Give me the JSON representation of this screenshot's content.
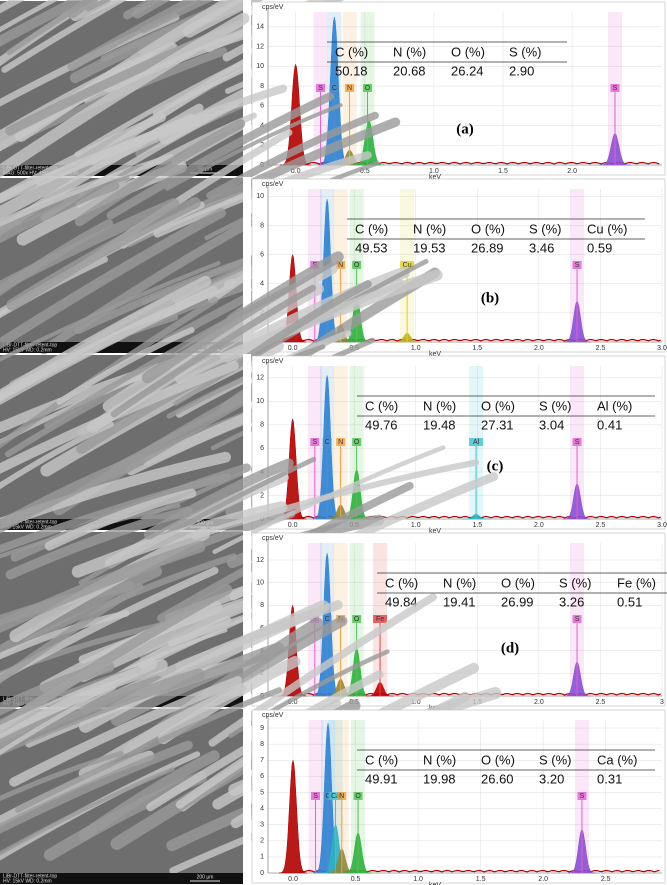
{
  "panels": [
    {
      "label": "(a)",
      "y_unit": "cps/eV",
      "x_unit": "keV",
      "sem": {
        "line1": "LiBr-DTT-filter-retent-top",
        "line2": "MAG: 500x  HV: 15kV  WD: 6.5mm",
        "scale": "50 µm"
      },
      "xlim": [
        -0.2,
        2.65
      ],
      "xticks": [
        {
          "value": 0,
          "label": "0.0"
        },
        {
          "value": 0.5,
          "label": "0.5"
        },
        {
          "value": 1,
          "label": "1.0"
        },
        {
          "value": 1.5,
          "label": "1.5"
        },
        {
          "value": 2,
          "label": "2.0"
        }
      ],
      "ylim": [
        0,
        15.5
      ],
      "yticks": [
        0,
        2,
        4,
        6,
        8,
        10,
        12,
        14
      ],
      "table": {
        "header": [
          "C (%)",
          "N (%)",
          "O (%)",
          "S (%)"
        ],
        "values": [
          "50.18",
          "20.68",
          "26.24",
          "2.90"
        ]
      },
      "markers": [
        {
          "label": "S",
          "x": 0.18,
          "color": "#e060d0"
        },
        {
          "label": "C",
          "x": 0.28,
          "color": "#4a90d0"
        },
        {
          "label": "N",
          "x": 0.39,
          "color": "#f0a040"
        },
        {
          "label": "O",
          "x": 0.52,
          "color": "#50c050"
        },
        {
          "label": "S",
          "x": 2.31,
          "color": "#e060d0"
        }
      ],
      "peaks": [
        {
          "x": 0.0,
          "y": 10.2,
          "color": "#b00000"
        },
        {
          "x": 0.28,
          "y": 15,
          "color": "#2f7fd0"
        },
        {
          "x": 0.39,
          "y": 1.5,
          "color": "#8a8a40"
        },
        {
          "x": 0.53,
          "y": 4.5,
          "color": "#30b040"
        },
        {
          "x": 2.31,
          "y": 3.2,
          "color": "#8a50d0"
        }
      ]
    },
    {
      "label": "(b)",
      "y_unit": "cps/eV",
      "x_unit": "keV",
      "sem": {
        "line1": "LiBr-DTT-filter-retent-top",
        "line2": "HV: 15kV  WD: 0.2mm",
        "scale": "200 µm"
      },
      "xlim": [
        -0.2,
        3.0
      ],
      "xticks": [
        {
          "value": 0,
          "label": "0.0"
        },
        {
          "value": 0.5,
          "label": "0.5"
        },
        {
          "value": 1,
          "label": "1.0"
        },
        {
          "value": 1.5,
          "label": "1.5"
        },
        {
          "value": 2,
          "label": "2.0"
        },
        {
          "value": 2.5,
          "label": "2.5"
        },
        {
          "value": 3,
          "label": "3.0"
        }
      ],
      "ylim": [
        0,
        10.5
      ],
      "yticks": [
        0,
        2,
        4,
        6,
        8,
        10
      ],
      "table": {
        "header": [
          "C (%)",
          "N (%)",
          "O (%)",
          "S (%)",
          "Cu (%)"
        ],
        "values": [
          "49.53",
          "19.53",
          "26.89",
          "3.46",
          "0.59"
        ]
      },
      "markers": [
        {
          "label": "S",
          "x": 0.18,
          "color": "#e060d0"
        },
        {
          "label": "C",
          "x": 0.28,
          "color": "#4a90d0"
        },
        {
          "label": "N",
          "x": 0.39,
          "color": "#f0a040"
        },
        {
          "label": "O",
          "x": 0.52,
          "color": "#50c050"
        },
        {
          "label": "Cu",
          "x": 0.93,
          "color": "#e0d020"
        },
        {
          "label": "S",
          "x": 2.31,
          "color": "#e060d0"
        }
      ],
      "peaks": [
        {
          "x": 0.0,
          "y": 6,
          "color": "#b00000"
        },
        {
          "x": 0.28,
          "y": 9.8,
          "color": "#2f7fd0"
        },
        {
          "x": 0.39,
          "y": 1.2,
          "color": "#8a8a40"
        },
        {
          "x": 0.52,
          "y": 3.2,
          "color": "#30b040"
        },
        {
          "x": 0.93,
          "y": 0.6,
          "color": "#c0b020"
        },
        {
          "x": 2.31,
          "y": 2.8,
          "color": "#8a50d0"
        }
      ]
    },
    {
      "label": "(c)",
      "y_unit": "cps/eV",
      "x_unit": "keV",
      "sem": {
        "line1": "LiBr-DTT-filter-retent-top",
        "line2": "HV: 15kV  WD: 0.2mm",
        "scale": "200 µm"
      },
      "xlim": [
        -0.2,
        3.0
      ],
      "xticks": [
        {
          "value": 0,
          "label": "0.0"
        },
        {
          "value": 0.5,
          "label": "0.5"
        },
        {
          "value": 1,
          "label": "1.0"
        },
        {
          "value": 1.5,
          "label": "1.5"
        },
        {
          "value": 2,
          "label": "2.0"
        },
        {
          "value": 2.5,
          "label": "2.5"
        },
        {
          "value": 3,
          "label": "3.0"
        }
      ],
      "ylim": [
        0,
        13
      ],
      "yticks": [
        0,
        2,
        4,
        6,
        8,
        10,
        12
      ],
      "table": {
        "header": [
          "C (%)",
          "N (%)",
          "O (%)",
          "S (%)",
          "Al (%)"
        ],
        "values": [
          "49.76",
          "19.48",
          "27.31",
          "3.04",
          "0.41"
        ]
      },
      "markers": [
        {
          "label": "S",
          "x": 0.18,
          "color": "#e060d0"
        },
        {
          "label": "C",
          "x": 0.28,
          "color": "#4a90d0"
        },
        {
          "label": "N",
          "x": 0.39,
          "color": "#f0a040"
        },
        {
          "label": "O",
          "x": 0.52,
          "color": "#50c050"
        },
        {
          "label": "Al",
          "x": 1.49,
          "color": "#40c0d0"
        },
        {
          "label": "S",
          "x": 2.31,
          "color": "#e060d0"
        }
      ],
      "peaks": [
        {
          "x": 0.0,
          "y": 8.5,
          "color": "#b00000"
        },
        {
          "x": 0.28,
          "y": 12.2,
          "color": "#2f7fd0"
        },
        {
          "x": 0.39,
          "y": 1.2,
          "color": "#8a8a40"
        },
        {
          "x": 0.52,
          "y": 4.2,
          "color": "#30b040"
        },
        {
          "x": 1.49,
          "y": 0.4,
          "color": "#30b0c0"
        },
        {
          "x": 2.31,
          "y": 3,
          "color": "#8a50d0"
        }
      ]
    },
    {
      "label": "(d)",
      "y_unit": "cps/eV",
      "x_unit": "keV",
      "sem": {
        "line1": "LiBr-DTT-filter-retent-top",
        "line2": "HV: 15kV  WD: 0.2mm",
        "scale": "200 µm"
      },
      "xlim": [
        -0.2,
        3.0
      ],
      "xticks": [
        {
          "value": 0,
          "label": "0.0"
        },
        {
          "value": 0.5,
          "label": "0.5"
        },
        {
          "value": 1,
          "label": "1.0"
        },
        {
          "value": 1.5,
          "label": "1.5"
        },
        {
          "value": 2,
          "label": "2.0"
        },
        {
          "value": 2.5,
          "label": "2.5"
        },
        {
          "value": 3,
          "label": "3"
        }
      ],
      "ylim": [
        0,
        13.5
      ],
      "yticks": [
        0,
        2,
        4,
        6,
        8,
        10,
        12
      ],
      "table": {
        "header": [
          "C (%)",
          "N (%)",
          "O (%)",
          "S (%)",
          "Fe (%)"
        ],
        "values": [
          "49.84",
          "19.41",
          "26.99",
          "3.26",
          "0.51"
        ]
      },
      "markers": [
        {
          "label": "S",
          "x": 0.18,
          "color": "#e060d0"
        },
        {
          "label": "C",
          "x": 0.28,
          "color": "#4a90d0"
        },
        {
          "label": "N",
          "x": 0.39,
          "color": "#f0a040"
        },
        {
          "label": "O",
          "x": 0.52,
          "color": "#50c050"
        },
        {
          "label": "Fe",
          "x": 0.71,
          "color": "#e04040"
        },
        {
          "label": "S",
          "x": 2.31,
          "color": "#e060d0"
        }
      ],
      "peaks": [
        {
          "x": 0.0,
          "y": 8,
          "color": "#b00000"
        },
        {
          "x": 0.28,
          "y": 12.6,
          "color": "#2f7fd0"
        },
        {
          "x": 0.39,
          "y": 1.5,
          "color": "#8a8a40"
        },
        {
          "x": 0.52,
          "y": 4.2,
          "color": "#30b040"
        },
        {
          "x": 0.71,
          "y": 1.2,
          "color": "#c00000"
        },
        {
          "x": 2.31,
          "y": 3,
          "color": "#8a50d0"
        }
      ]
    },
    {
      "label": null,
      "y_unit": "cps/eV",
      "x_unit": "keV",
      "sem": {
        "line1": "LiBr-DTT-filter-retent-top",
        "line2": "HV: 15kV  WD: 0.2mm",
        "scale": "200 µm"
      },
      "xlim": [
        -0.2,
        2.95
      ],
      "xticks": [
        {
          "value": 0,
          "label": "0.0"
        },
        {
          "value": 0.5,
          "label": "0.5"
        },
        {
          "value": 1,
          "label": "1.0"
        },
        {
          "value": 1.5,
          "label": "1.5"
        },
        {
          "value": 2,
          "label": "2.0"
        },
        {
          "value": 2.5,
          "label": "2.5"
        }
      ],
      "ylim": [
        0,
        9.5
      ],
      "yticks": [
        0,
        1,
        2,
        3,
        4,
        5,
        6,
        7,
        8,
        9
      ],
      "table": {
        "header": [
          "C (%)",
          "N (%)",
          "O (%)",
          "S (%)",
          "Ca (%)"
        ],
        "values": [
          "49.91",
          "19.98",
          "26.60",
          "3.20",
          "0.31"
        ]
      },
      "markers": [
        {
          "label": "S",
          "x": 0.18,
          "color": "#e060d0"
        },
        {
          "label": "C",
          "x": 0.28,
          "color": "#4a90d0"
        },
        {
          "label": "Ca",
          "x": 0.34,
          "color": "#40c0d0"
        },
        {
          "label": "N",
          "x": 0.39,
          "color": "#f0a040"
        },
        {
          "label": "O",
          "x": 0.52,
          "color": "#50c050"
        },
        {
          "label": "S",
          "x": 2.31,
          "color": "#e060d0"
        }
      ],
      "peaks": [
        {
          "x": 0.0,
          "y": 7,
          "color": "#b00000"
        },
        {
          "x": 0.28,
          "y": 9.3,
          "color": "#2f7fd0"
        },
        {
          "x": 0.34,
          "y": 3,
          "color": "#30b0c0"
        },
        {
          "x": 0.39,
          "y": 1.5,
          "color": "#8a8a40"
        },
        {
          "x": 0.52,
          "y": 2.5,
          "color": "#30b040"
        },
        {
          "x": 2.31,
          "y": 2.7,
          "color": "#8a50d0"
        }
      ]
    }
  ]
}
